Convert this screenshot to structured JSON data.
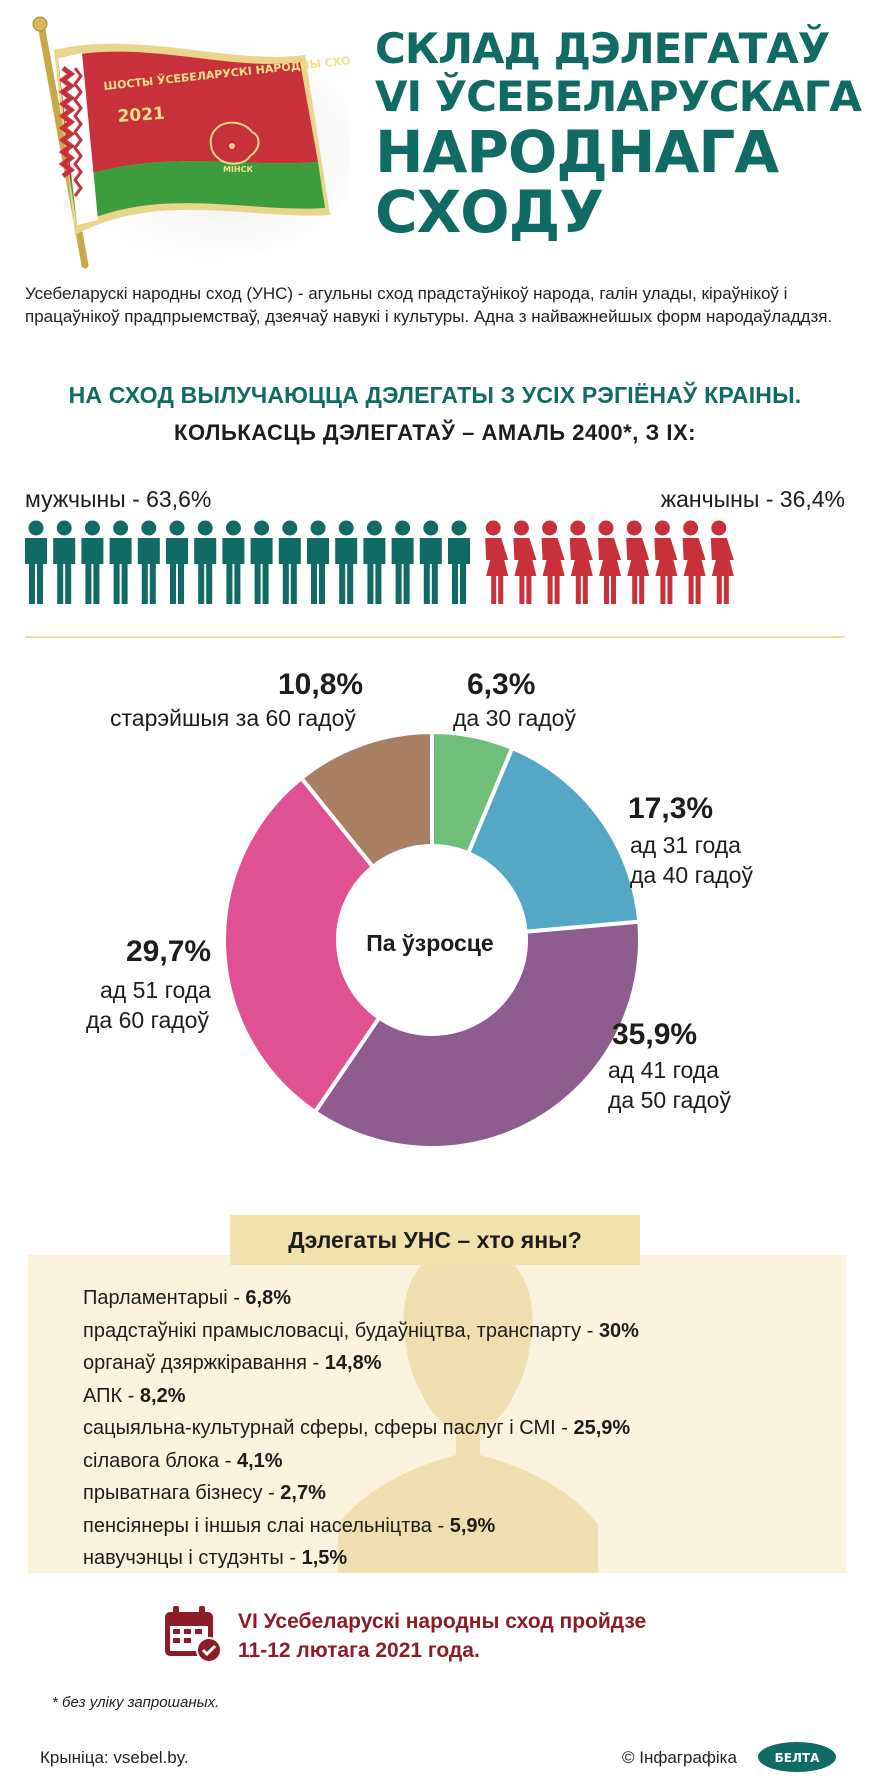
{
  "flag": {
    "banner_text": "ШОСТЫ ЎСЕБЕЛАРУСКІ НАРОДНЫ СХОД",
    "year": "2021",
    "city": "МІНСК"
  },
  "title": {
    "line1": "СКЛАД ДЭЛЕГАТАЎ",
    "line2": "VI ЎСЕБЕЛАРУСКАГА",
    "line3": "НАРОДНАГА",
    "line4": "СХОДУ"
  },
  "intro": "Усебеларускі народны сход (УНС) - агульны сход прадстаўнікоў народа, галін улады, кіраўнікоў і працаўнікоў прадпрыемстваў, дзеячаў навукі і культуры. Адна з найважнейшых форм народаўладдзя.",
  "subtitle1": "НА СХОД ВЫЛУЧАЮЦЦА ДЭЛЕГАТЫ З УСІХ РЭГІЁНАЎ КРАІНЫ.",
  "subtitle2": "КОЛЬКАСЦЬ ДЭЛЕГАТАЎ – АМАЛЬ 2400*, З ІХ:",
  "gender": {
    "men_label": "мужчыны - 63,6%",
    "women_label": "жанчыны - 36,4%",
    "men_share": 63.6,
    "women_share": 36.4,
    "men_icons": 16,
    "women_icons": 9,
    "men_color": "#0f6b63",
    "women_color": "#c8313a"
  },
  "chart_data": {
    "type": "pie",
    "title": "Па ўзросце",
    "slices": [
      {
        "pct": "6,3%",
        "label1": "да 30 гадоў",
        "label2": "",
        "value": 6.3,
        "color": "#6fbf7a"
      },
      {
        "pct": "17,3%",
        "label1": "ад 31 года",
        "label2": "да 40 гадоў",
        "value": 17.3,
        "color": "#55a7c6"
      },
      {
        "pct": "35,9%",
        "label1": "ад 41 года",
        "label2": "да 50 гадоў",
        "value": 35.9,
        "color": "#8e5c8f"
      },
      {
        "pct": "29,7%",
        "label1": "ад 51 года",
        "label2": "да 60 гадоў",
        "value": 29.7,
        "color": "#e05193"
      },
      {
        "pct": "10,8%",
        "label1": "старэйшыя за 60 гадоў",
        "label2": "",
        "value": 10.8,
        "color": "#a87f63"
      }
    ]
  },
  "who": {
    "heading": "Дэлегаты УНС – хто яны?",
    "items": [
      {
        "label": "Парламентарыі - ",
        "value": "6,8%"
      },
      {
        "label": "прадстаўнікі прамысловасці, будаўніцтва, транспарту - ",
        "value": "30%"
      },
      {
        "label": "органаў дзяржкіравання - ",
        "value": "14,8%"
      },
      {
        "label": "АПК - ",
        "value": "8,2%"
      },
      {
        "label": "сацыяльна-культурнай сферы, сферы паслуг і СМІ - ",
        "value": "25,9%"
      },
      {
        "label": "сілавога блока - ",
        "value": "4,1%"
      },
      {
        "label": "прыватнага бізнесу - ",
        "value": "2,7%"
      },
      {
        "label": "пенсіянеры і іншыя слаі насельніцтва - ",
        "value": "5,9%"
      },
      {
        "label": "навучэнцы і студэнты - ",
        "value": "1,5%"
      }
    ]
  },
  "event": {
    "line1": "VI Усебеларускі народны сход пройдзе",
    "line2": "11-12 лютага 2021 года.",
    "icon": "calendar-check-icon"
  },
  "footnote": "* без уліку запрошаных.",
  "source": "Крыніца: vsebel.by.",
  "credit": "© Інфаграфіка",
  "logo": "БЕЛТА"
}
